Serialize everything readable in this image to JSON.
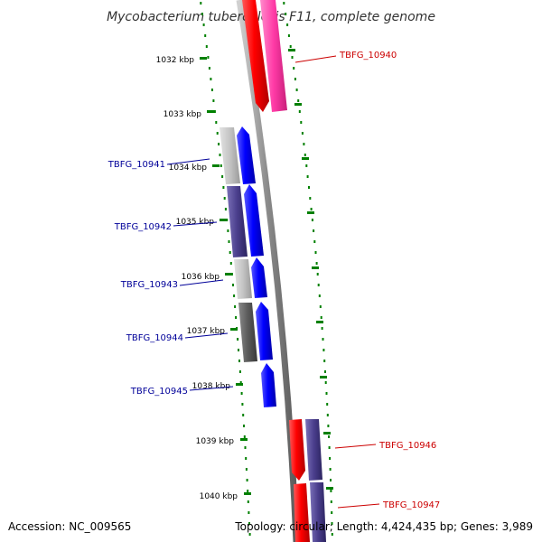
{
  "title": "Mycobacterium tuberculosis F11, complete genome",
  "footer": {
    "accession": "Accession: NC_009565",
    "summary": "Topology: circular; Length: 4,424,435 bp; Genes: 3,989"
  },
  "colors": {
    "forward_label": "#cc0000",
    "reverse_label": "#000099",
    "backbone": "#888888",
    "scale_dots": "#008000"
  },
  "scale": {
    "unit": "kbp",
    "ticks": [
      {
        "label": "1032 kbp",
        "kbp": 1032
      },
      {
        "label": "1033 kbp",
        "kbp": 1033
      },
      {
        "label": "1034 kbp",
        "kbp": 1034
      },
      {
        "label": "1035 kbp",
        "kbp": 1035
      },
      {
        "label": "1036 kbp",
        "kbp": 1036
      },
      {
        "label": "1037 kbp",
        "kbp": 1037
      },
      {
        "label": "1038 kbp",
        "kbp": 1038
      },
      {
        "label": "1039 kbp",
        "kbp": 1039
      },
      {
        "label": "1040 kbp",
        "kbp": 1040
      }
    ]
  },
  "genes": [
    {
      "name": "TBFG_10940",
      "strand": "forward",
      "strand_color": "#ff0000",
      "category_color": "#ff3aa6"
    },
    {
      "name": "TBFG_10941",
      "strand": "reverse",
      "strand_color": "#0000ff",
      "category_color": "#b8b8b8"
    },
    {
      "name": "TBFG_10942",
      "strand": "reverse",
      "strand_color": "#0000ff",
      "category_color": "#4a3e8c"
    },
    {
      "name": "TBFG_10943",
      "strand": "reverse",
      "strand_color": "#0000ff",
      "category_color": "#bdbdbd"
    },
    {
      "name": "TBFG_10944",
      "strand": "reverse",
      "strand_color": "#0000ff",
      "category_color": "#555555"
    },
    {
      "name": "TBFG_10945",
      "strand": "reverse",
      "strand_color": "#0000ff",
      "category_color": ""
    },
    {
      "name": "TBFG_10946",
      "strand": "forward",
      "strand_color": "#ff0000",
      "category_color": "#4a3e8c"
    },
    {
      "name": "TBFG_10947",
      "strand": "forward",
      "strand_color": "#ff0000",
      "category_color": "#4a3e8c"
    }
  ]
}
